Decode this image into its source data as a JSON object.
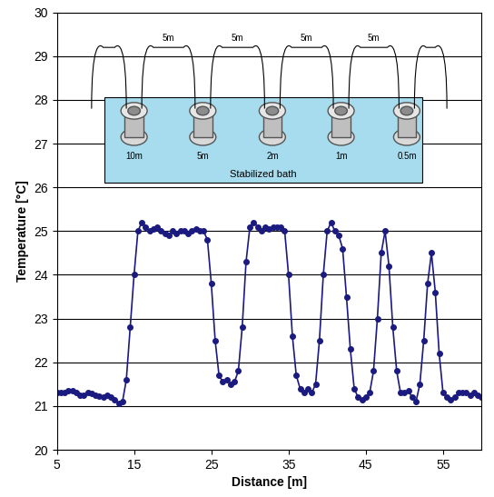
{
  "chart_data": {
    "type": "line",
    "x_label": "Distance [m]",
    "y_label": "Temperature [°C]",
    "x": [
      5,
      5.5,
      6,
      6.5,
      7,
      7.5,
      8,
      8.5,
      9,
      9.5,
      10,
      10.5,
      11,
      11.5,
      12,
      12.5,
      13,
      13.5,
      14,
      14.5,
      15,
      15.5,
      16,
      16.5,
      17,
      17.5,
      18,
      18.5,
      19,
      19.5,
      20,
      20.5,
      21,
      21.5,
      22,
      22.5,
      23,
      23.5,
      24,
      24.5,
      25,
      25.5,
      26,
      26.5,
      27,
      27.5,
      28,
      28.5,
      29,
      29.5,
      30,
      30.5,
      31,
      31.5,
      32,
      32.5,
      33,
      33.5,
      34,
      34.5,
      35,
      35.5,
      36,
      36.5,
      37,
      37.5,
      38,
      38.5,
      39,
      39.5,
      40,
      40.5,
      41,
      41.5,
      42,
      42.5,
      43,
      43.5,
      44,
      44.5,
      45,
      45.5,
      46,
      46.5,
      47,
      47.5,
      48,
      48.5,
      49,
      49.5,
      50,
      50.5,
      51,
      51.5,
      52,
      52.5,
      53,
      53.5,
      54,
      54.5,
      55,
      55.5,
      56,
      56.5,
      57,
      57.5,
      58,
      58.5,
      59,
      59.5,
      60
    ],
    "values": [
      21.3,
      21.3,
      21.3,
      21.35,
      21.35,
      21.3,
      21.25,
      21.25,
      21.3,
      21.28,
      21.25,
      21.22,
      21.2,
      21.25,
      21.2,
      21.15,
      21.05,
      21.1,
      21.6,
      22.8,
      24.0,
      25.0,
      25.2,
      25.1,
      25.0,
      25.05,
      25.1,
      25.0,
      24.95,
      24.9,
      25.0,
      24.95,
      25.0,
      25.0,
      24.95,
      25.0,
      25.05,
      25.0,
      25.0,
      24.8,
      23.8,
      22.5,
      21.7,
      21.55,
      21.6,
      21.5,
      21.55,
      21.8,
      22.8,
      24.3,
      25.1,
      25.2,
      25.1,
      25.0,
      25.1,
      25.05,
      25.1,
      25.1,
      25.1,
      25.0,
      24.0,
      22.6,
      21.7,
      21.4,
      21.3,
      21.4,
      21.3,
      21.5,
      22.5,
      24.0,
      25.0,
      25.2,
      25.0,
      24.9,
      24.6,
      23.5,
      22.3,
      21.4,
      21.2,
      21.15,
      21.2,
      21.3,
      21.8,
      23.0,
      24.5,
      25.0,
      24.2,
      22.8,
      21.8,
      21.3,
      21.3,
      21.35,
      21.2,
      21.1,
      21.5,
      22.5,
      23.8,
      24.5,
      23.6,
      22.2,
      21.3,
      21.2,
      21.15,
      21.2,
      21.3,
      21.3,
      21.3,
      21.25,
      21.3,
      21.25,
      21.2
    ],
    "color": "#1a1a80",
    "marker": "o",
    "line_style": "solid",
    "xlim": [
      5,
      60
    ],
    "xticks": [
      5,
      15,
      25,
      35,
      45,
      55
    ],
    "ylim": [
      20,
      30
    ],
    "yticks": [
      20,
      21,
      22,
      23,
      24,
      25,
      26,
      27,
      28,
      29,
      30
    ],
    "grid": true,
    "inset": {
      "bath_label": "Stabilized bath",
      "coil_labels": [
        "10m",
        "5m",
        "2m",
        "1m",
        "0.5m"
      ],
      "link_labels": [
        "5m",
        "5m",
        "5m",
        "5m"
      ]
    }
  }
}
